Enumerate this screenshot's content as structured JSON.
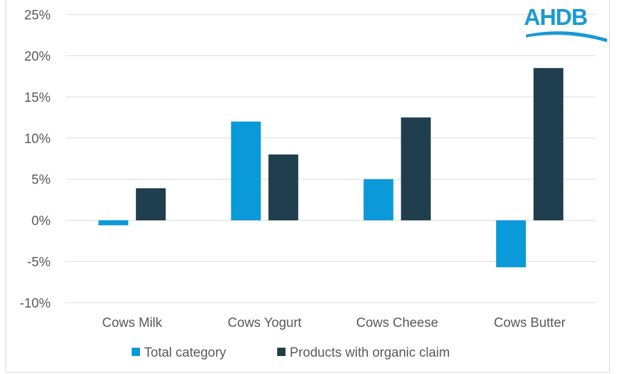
{
  "logo": {
    "text": "AHDB",
    "color": "#1a99d6"
  },
  "chart_data": {
    "type": "bar",
    "categories": [
      "Cows Milk",
      "Cows Yogurt",
      "Cows Cheese",
      "Cows Butter"
    ],
    "series": [
      {
        "name": "Total category",
        "values": [
          -0.6,
          12.0,
          5.0,
          -5.7
        ],
        "color": "#0a9ad9"
      },
      {
        "name": "Products with organic claim",
        "values": [
          3.9,
          8.0,
          12.5,
          18.5
        ],
        "color": "#1f3e4e"
      }
    ],
    "yticks": [
      "-10%",
      "-5%",
      "0%",
      "5%",
      "10%",
      "15%",
      "20%",
      "25%"
    ],
    "ylim": [
      -10,
      25
    ],
    "grid": true,
    "legend_position": "bottom"
  }
}
